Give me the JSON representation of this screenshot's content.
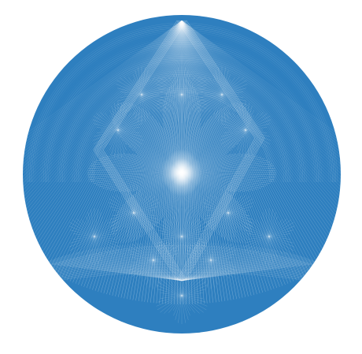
{
  "figure": {
    "shape": "disc",
    "background_color": "#ffffff",
    "fill_color": "#2e7fbf",
    "line_color": "#ffffff",
    "center_glow_color": "#ffffff"
  }
}
